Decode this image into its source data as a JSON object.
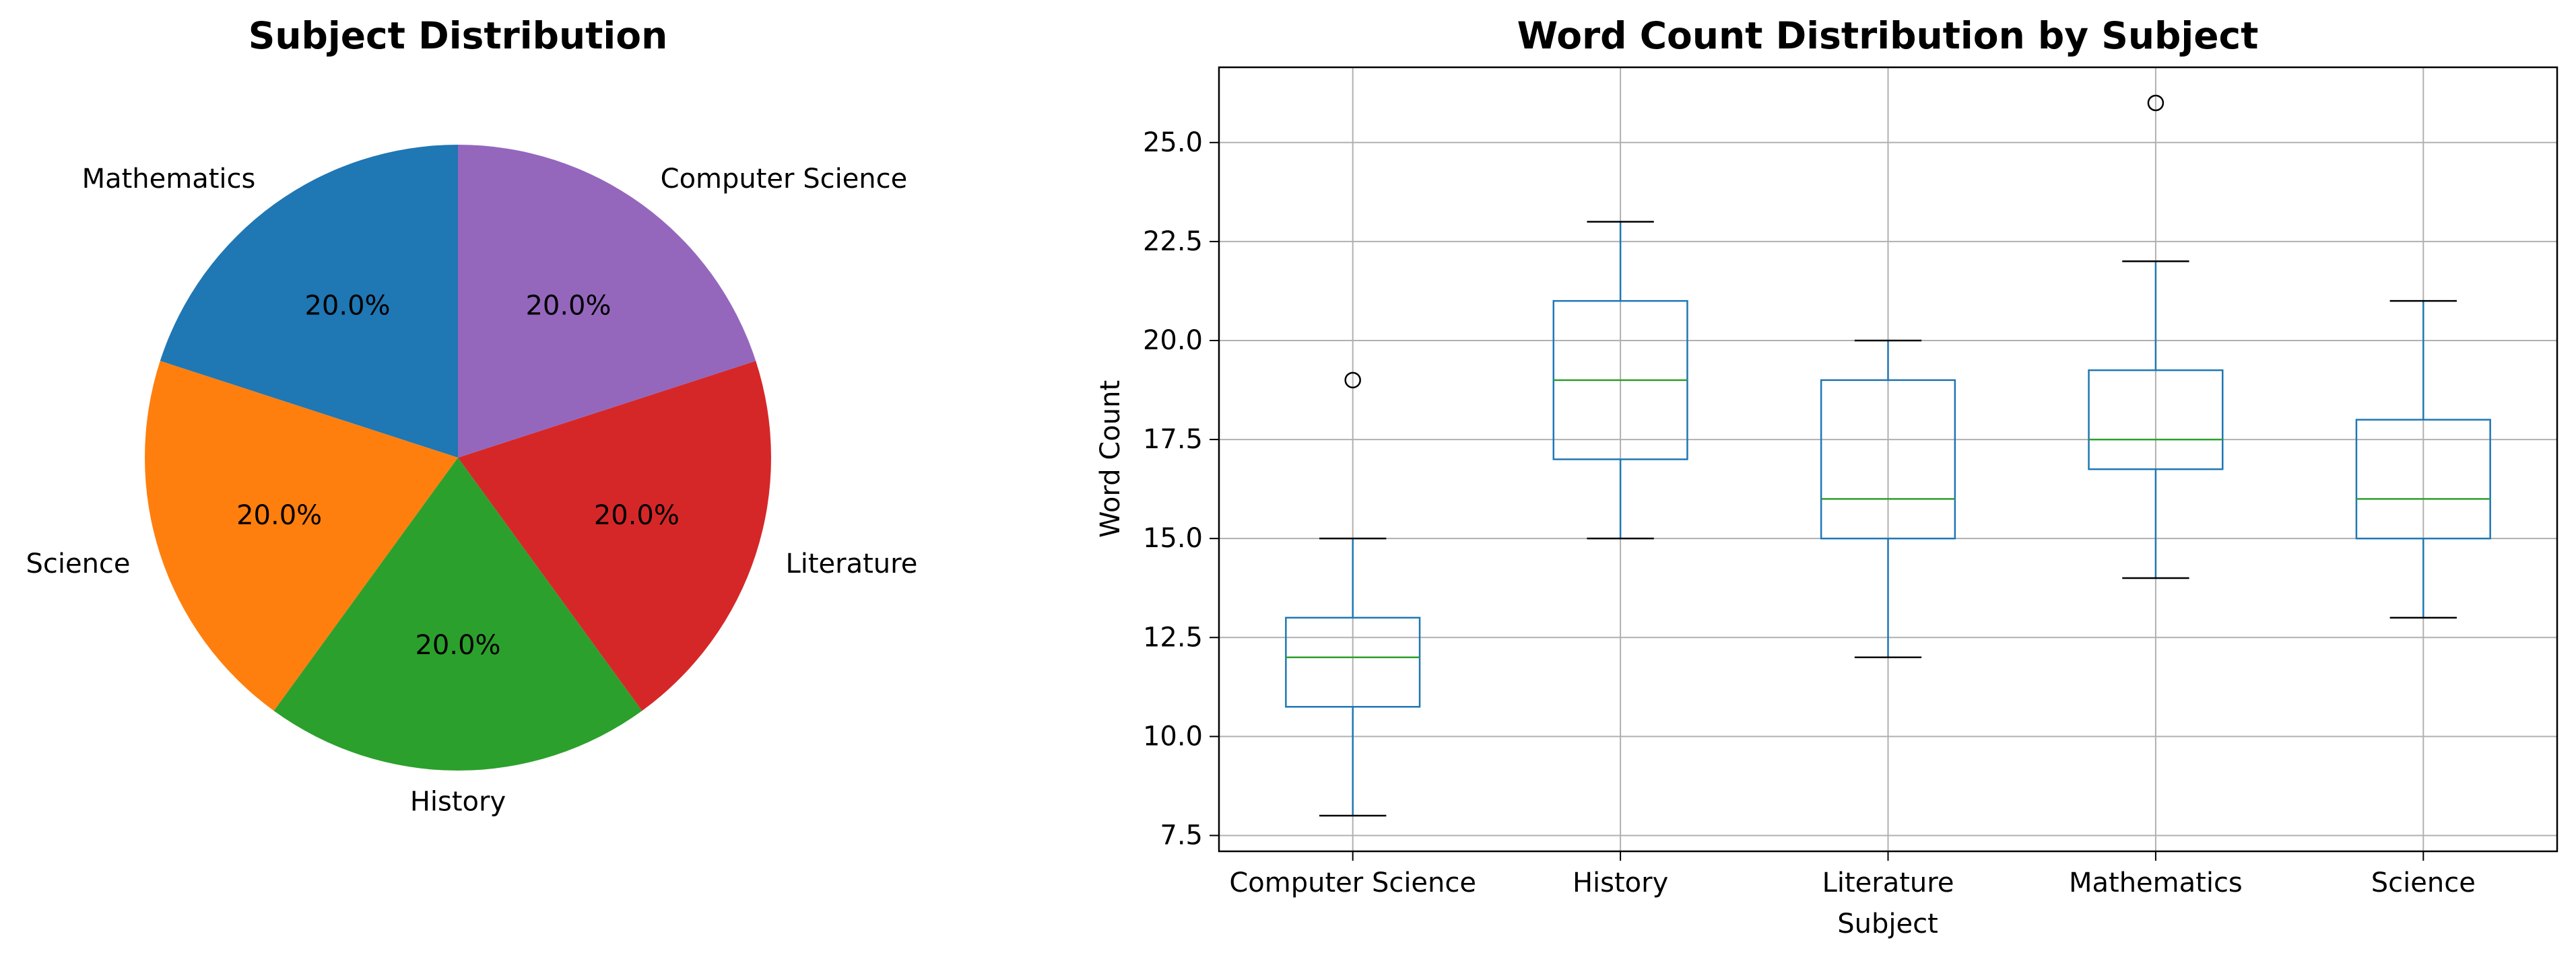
{
  "chart_data": [
    {
      "type": "pie",
      "title": "Subject Distribution",
      "labels": [
        "Mathematics",
        "Science",
        "History",
        "Literature",
        "Computer Science"
      ],
      "values": [
        20.0,
        20.0,
        20.0,
        20.0,
        20.0
      ],
      "percent_labels": [
        "20.0%",
        "20.0%",
        "20.0%",
        "20.0%",
        "20.0%"
      ],
      "colors": [
        "#1f77b4",
        "#ff7f0e",
        "#2ca02c",
        "#d62728",
        "#9467bd"
      ],
      "start_angle_deg": 90,
      "direction": "counterclockwise"
    },
    {
      "type": "box",
      "title": "Word Count Distribution by Subject",
      "xlabel": "Subject",
      "ylabel": "Word Count",
      "categories": [
        "Computer Science",
        "History",
        "Literature",
        "Mathematics",
        "Science"
      ],
      "boxes": [
        {
          "whisker_low": 8.0,
          "q1": 10.75,
          "median": 12.0,
          "q3": 13.0,
          "whisker_high": 15.0,
          "outliers": [
            19.0
          ]
        },
        {
          "whisker_low": 15.0,
          "q1": 17.0,
          "median": 19.0,
          "q3": 21.0,
          "whisker_high": 23.0,
          "outliers": []
        },
        {
          "whisker_low": 12.0,
          "q1": 15.0,
          "median": 16.0,
          "q3": 19.0,
          "whisker_high": 20.0,
          "outliers": []
        },
        {
          "whisker_low": 14.0,
          "q1": 16.75,
          "median": 17.5,
          "q3": 19.25,
          "whisker_high": 22.0,
          "outliers": [
            26.0
          ]
        },
        {
          "whisker_low": 13.0,
          "q1": 15.0,
          "median": 16.0,
          "q3": 18.0,
          "whisker_high": 21.0,
          "outliers": []
        }
      ],
      "yticks": [
        "7.5",
        "10.0",
        "12.5",
        "15.0",
        "17.5",
        "20.0",
        "22.5",
        "25.0"
      ],
      "ytick_values": [
        7.5,
        10.0,
        12.5,
        15.0,
        17.5,
        20.0,
        22.5,
        25.0
      ],
      "ylim": [
        7.1,
        26.9
      ],
      "grid": true,
      "box_color": "#1f77b4",
      "median_color": "#2ca02c",
      "whisker_color": "#1f77b4",
      "cap_color": "#000000"
    }
  ]
}
